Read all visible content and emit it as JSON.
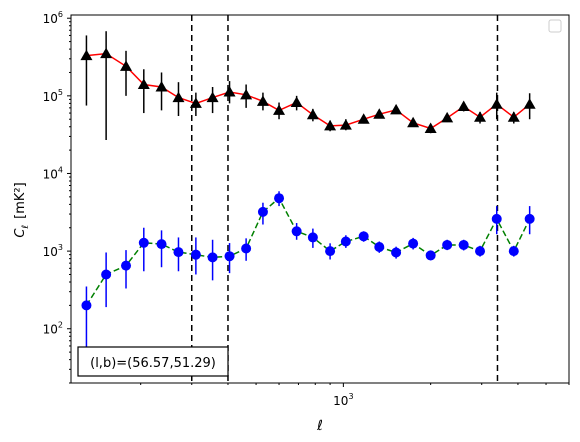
{
  "chart_data": {
    "type": "line",
    "xlabel": "ℓ",
    "ylabel_symbol": "C",
    "ylabel_sub": "ℓ",
    "ylabel_unit": "[mK²]",
    "x_scale": "log",
    "y_scale": "log",
    "xlim": [
      115,
      6000
    ],
    "ylim": [
      20,
      1100000
    ],
    "x_tick_labels": [
      {
        "value": 1000,
        "base": "10",
        "exp": "3"
      }
    ],
    "y_tick_labels": [
      {
        "value": 100,
        "base": "10",
        "exp": "2"
      },
      {
        "value": 1000,
        "base": "10",
        "exp": "3"
      },
      {
        "value": 10000,
        "base": "10",
        "exp": "4"
      },
      {
        "value": 100000,
        "base": "10",
        "exp": "5"
      },
      {
        "value": 1000000,
        "base": "10",
        "exp": "6"
      }
    ],
    "vlines": [
      300,
      400,
      3400
    ],
    "annotation": "(l,b)=(56.57,51.29)",
    "legend": {
      "placement": "top-right",
      "entries": []
    },
    "series": [
      {
        "marker": "triangle",
        "marker_color": "#000000",
        "line_color": "#ff0000",
        "line_style": "solid",
        "x": [
          130,
          152,
          178,
          205,
          236,
          270,
          310,
          354,
          405,
          462,
          528,
          600,
          690,
          785,
          900,
          1020,
          1175,
          1330,
          1520,
          1740,
          2000,
          2280,
          2600,
          2960,
          3380,
          3870,
          4390
        ],
        "y": [
          330000,
          350000,
          240000,
          140000,
          130000,
          95000,
          80000,
          95000,
          112000,
          103000,
          85000,
          65000,
          82000,
          57000,
          41000,
          42000,
          50000,
          58000,
          66000,
          45000,
          38000,
          52000,
          73000,
          53000,
          78000,
          53000,
          78000
        ],
        "y_low": [
          75000,
          27000,
          100000,
          60000,
          65000,
          55000,
          55000,
          60000,
          80000,
          70000,
          65000,
          50000,
          65000,
          47000,
          35000,
          36000,
          44000,
          52000,
          59000,
          40000,
          33000,
          46000,
          63000,
          44000,
          50000,
          44000,
          50000
        ],
        "y_high": [
          600000,
          680000,
          380000,
          220000,
          200000,
          150000,
          110000,
          130000,
          155000,
          140000,
          110000,
          82000,
          100000,
          68000,
          48000,
          50000,
          56000,
          65000,
          73000,
          50000,
          43000,
          58000,
          84000,
          62000,
          110000,
          62000,
          108000
        ]
      },
      {
        "marker": "circle",
        "marker_color": "#0000ff",
        "line_color": "#008000",
        "line_style": "dashed",
        "x": [
          130,
          152,
          178,
          205,
          236,
          270,
          310,
          354,
          405,
          462,
          528,
          600,
          690,
          785,
          900,
          1020,
          1175,
          1330,
          1520,
          1740,
          2000,
          2280,
          2600,
          2960,
          3380,
          3870,
          4390
        ],
        "y": [
          200,
          500,
          650,
          1280,
          1230,
          970,
          900,
          830,
          860,
          1080,
          3200,
          4800,
          1800,
          1500,
          1000,
          1330,
          1550,
          1130,
          960,
          1250,
          880,
          1200,
          1200,
          1000,
          2600,
          1000,
          2600
        ],
        "y_low": [
          50,
          190,
          330,
          550,
          620,
          550,
          500,
          420,
          520,
          750,
          2200,
          3800,
          1400,
          1100,
          780,
          1100,
          1320,
          950,
          800,
          1050,
          760,
          1030,
          1020,
          850,
          1650,
          850,
          1650
        ],
        "y_high": [
          350,
          960,
          1030,
          2000,
          1850,
          1500,
          1500,
          1400,
          1270,
          1460,
          4200,
          5900,
          2300,
          1950,
          1260,
          1600,
          1800,
          1330,
          1140,
          1480,
          1020,
          1400,
          1400,
          1170,
          3800,
          1170,
          3800
        ]
      }
    ]
  }
}
